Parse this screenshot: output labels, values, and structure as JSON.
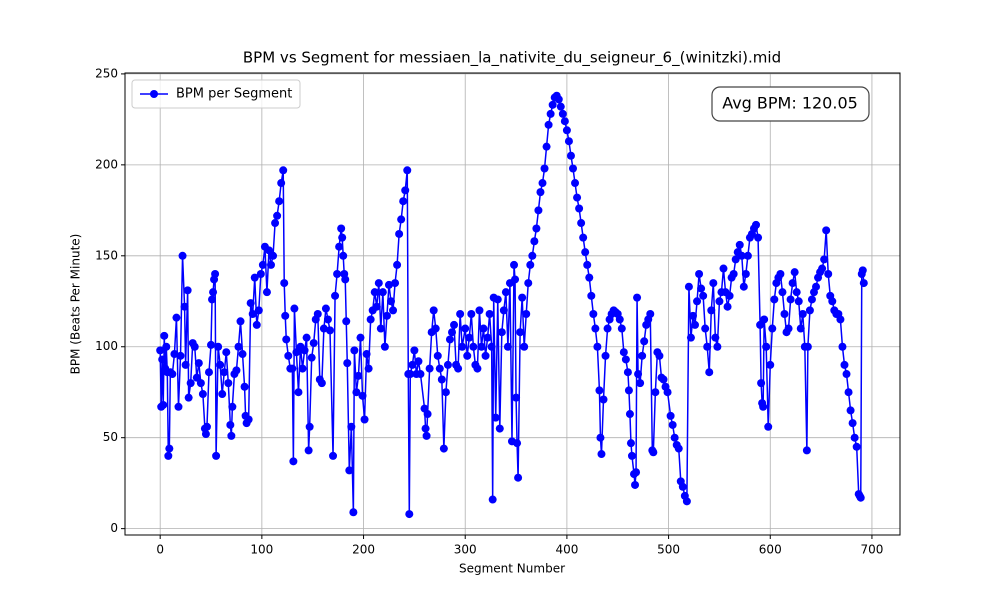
{
  "chart_data": {
    "type": "line",
    "title": "BPM vs Segment for messiaen_la_nativite_du_seigneur_6_(winitzki).mid",
    "x_label": "Segment Number",
    "y_label": "BPM (Beats Per Minute)",
    "annotation": "Avg BPM: 120.05",
    "legend": "upper left",
    "grid": true,
    "xlim": [
      -34.6,
      727.6
    ],
    "ylim": [
      -3.5,
      250.5
    ],
    "xticks": [
      0,
      100,
      200,
      300,
      400,
      500,
      600,
      700
    ],
    "yticks": [
      0,
      50,
      100,
      150,
      200,
      250
    ],
    "x": [
      0,
      1,
      2,
      3,
      4,
      5,
      6,
      7,
      8,
      9,
      10,
      12,
      14,
      16,
      18,
      20,
      22,
      24,
      25,
      27,
      28,
      30,
      32,
      34,
      36,
      38,
      40,
      42,
      44,
      45,
      46,
      48,
      50,
      51,
      52,
      53,
      54,
      55,
      57,
      59,
      61,
      63,
      65,
      67,
      69,
      70,
      71,
      73,
      75,
      77,
      79,
      81,
      83,
      84,
      85,
      87,
      89,
      91,
      93,
      95,
      97,
      99,
      101,
      103,
      105,
      107,
      109,
      111,
      113,
      115,
      117,
      119,
      121,
      122,
      123,
      124,
      126,
      128,
      130,
      131,
      132,
      134,
      136,
      138,
      140,
      142,
      144,
      146,
      147,
      149,
      151,
      153,
      155,
      157,
      159,
      161,
      163,
      165,
      167,
      170,
      172,
      174,
      176,
      178,
      179,
      180,
      181,
      182,
      183,
      184,
      186,
      188,
      190,
      191,
      193,
      195,
      197,
      199,
      201,
      203,
      205,
      207,
      209,
      211,
      213,
      215,
      217,
      219,
      221,
      223,
      225,
      227,
      229,
      231,
      233,
      235,
      237,
      239,
      241,
      243,
      244,
      245,
      246,
      248,
      250,
      252,
      254,
      256,
      260,
      261,
      262,
      263,
      265,
      267,
      269,
      271,
      273,
      275,
      277,
      279,
      281,
      283,
      285,
      287,
      289,
      291,
      293,
      295,
      297,
      300,
      302,
      304,
      306,
      308,
      310,
      312,
      314,
      316,
      318,
      320,
      322,
      324,
      326,
      327,
      328,
      330,
      332,
      334,
      336,
      338,
      340,
      342,
      344,
      346,
      348,
      349,
      350,
      351,
      352,
      354,
      356,
      358,
      360,
      362,
      364,
      366,
      368,
      370,
      372,
      374,
      376,
      378,
      380,
      382,
      384,
      386,
      388,
      390,
      392,
      394,
      396,
      398,
      400,
      402,
      404,
      406,
      408,
      410,
      412,
      414,
      416,
      418,
      420,
      422,
      424,
      426,
      428,
      430,
      432,
      433,
      434,
      436,
      438,
      440,
      442,
      444,
      446,
      448,
      450,
      452,
      454,
      456,
      458,
      460,
      461,
      462,
      463,
      464,
      466,
      467,
      468,
      469,
      470,
      472,
      474,
      476,
      478,
      480,
      482,
      484,
      485,
      487,
      489,
      491,
      493,
      495,
      497,
      499,
      502,
      504,
      506,
      508,
      510,
      512,
      514,
      516,
      518,
      520,
      522,
      524,
      526,
      528,
      530,
      532,
      534,
      536,
      538,
      540,
      542,
      544,
      546,
      548,
      550,
      552,
      554,
      556,
      558,
      560,
      562,
      564,
      566,
      568,
      570,
      572,
      574,
      576,
      578,
      580,
      582,
      584,
      586,
      588,
      590,
      591,
      592,
      593,
      594,
      596,
      598,
      600,
      602,
      604,
      606,
      608,
      610,
      612,
      614,
      616,
      618,
      620,
      622,
      624,
      626,
      628,
      630,
      632,
      634,
      636,
      637,
      639,
      641,
      643,
      645,
      647,
      649,
      651,
      653,
      655,
      657,
      659,
      661,
      663,
      665,
      667,
      669,
      671,
      673,
      675,
      677,
      679,
      681,
      683,
      685,
      687,
      688,
      689,
      690,
      691,
      692
    ],
    "series": [
      {
        "name": "BPM per Segment",
        "color": "#0000ff",
        "values": [
          98,
          67,
          93,
          68,
          106,
          88,
          100,
          86,
          40,
          44,
          86,
          85,
          96,
          116,
          67,
          95,
          150,
          122,
          90,
          131,
          72,
          80,
          102,
          100,
          83,
          91,
          80,
          74,
          55,
          52,
          56,
          86,
          101,
          126,
          130,
          137,
          140,
          40,
          100,
          90,
          74,
          86,
          97,
          80,
          57,
          51,
          67,
          85,
          87,
          100,
          114,
          96,
          78,
          62,
          58,
          60,
          124,
          118,
          138,
          112,
          120,
          140,
          145,
          155,
          130,
          153,
          145,
          150,
          168,
          172,
          180,
          190,
          197,
          135,
          117,
          104,
          95,
          88,
          88,
          37,
          121,
          97,
          75,
          100,
          88,
          98,
          105,
          43,
          56,
          94,
          102,
          115,
          118,
          82,
          80,
          110,
          121,
          115,
          109,
          40,
          128,
          140,
          155,
          165,
          160,
          150,
          140,
          137,
          114,
          91,
          32,
          56,
          9,
          98,
          75,
          84,
          105,
          73,
          60,
          96,
          88,
          115,
          120,
          130,
          122,
          135,
          110,
          130,
          100,
          117,
          134,
          125,
          120,
          135,
          145,
          162,
          170,
          180,
          186,
          197,
          85,
          8,
          85,
          90,
          98,
          85,
          92,
          85,
          66,
          55,
          51,
          63,
          88,
          108,
          120,
          110,
          95,
          88,
          82,
          44,
          75,
          90,
          104,
          108,
          112,
          90,
          88,
          118,
          100,
          110,
          95,
          105,
          118,
          100,
          90,
          88,
          120,
          100,
          110,
          95,
          105,
          118,
          100,
          16,
          127,
          61,
          126,
          55,
          108,
          120,
          130,
          100,
          135,
          48,
          145,
          137,
          72,
          47,
          28,
          108,
          127,
          100,
          118,
          135,
          145,
          150,
          158,
          165,
          175,
          185,
          190,
          198,
          210,
          222,
          228,
          233,
          237,
          238,
          236,
          232,
          228,
          224,
          219,
          213,
          205,
          198,
          190,
          182,
          176,
          168,
          160,
          152,
          145,
          138,
          128,
          118,
          110,
          100,
          76,
          50,
          41,
          71,
          95,
          110,
          115,
          118,
          120,
          119,
          118,
          115,
          110,
          97,
          93,
          86,
          76,
          63,
          47,
          40,
          30,
          24,
          31,
          127,
          85,
          80,
          95,
          103,
          112,
          115,
          118,
          43,
          42,
          75,
          97,
          95,
          83,
          82,
          78,
          75,
          62,
          57,
          50,
          46,
          44,
          26,
          23,
          18,
          15,
          133,
          105,
          117,
          112,
          125,
          140,
          132,
          128,
          110,
          100,
          86,
          120,
          135,
          105,
          100,
          125,
          130,
          143,
          130,
          122,
          128,
          138,
          140,
          148,
          152,
          156,
          150,
          133,
          140,
          150,
          160,
          162,
          165,
          167,
          160,
          112,
          80,
          69,
          67,
          115,
          100,
          56,
          90,
          110,
          126,
          135,
          138,
          140,
          130,
          118,
          108,
          110,
          126,
          135,
          141,
          130,
          125,
          110,
          118,
          100,
          43,
          100,
          120,
          126,
          130,
          133,
          138,
          141,
          143,
          148,
          164,
          140,
          128,
          125,
          120,
          118,
          118,
          115,
          100,
          90,
          85,
          75,
          65,
          58,
          50,
          45,
          19,
          18,
          17,
          140,
          142,
          135
        ]
      }
    ]
  }
}
